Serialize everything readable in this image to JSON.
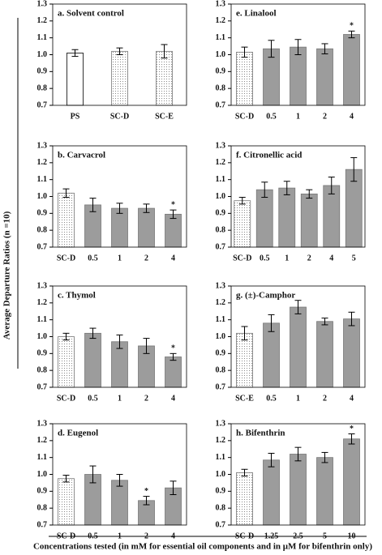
{
  "ylabel": "Average Departure Ratios (n =10)",
  "xlabel": "Concentrations tested (in mM for essential oil components and in μM for bifenthrin only)",
  "chart_data": [
    {
      "type": "bar",
      "title": "a. Solvent control",
      "categories": [
        "PS",
        "SC-D",
        "SC-E"
      ],
      "values": [
        1.01,
        1.02,
        1.02
      ],
      "errors": [
        0.02,
        0.02,
        0.04
      ],
      "fills": [
        "white",
        "dots",
        "dots"
      ],
      "significance": [
        null,
        null,
        null
      ],
      "ylim": [
        0.7,
        1.3
      ],
      "yticks": [
        0.7,
        0.8,
        0.9,
        {
          "value": 1,
          "label": "1.0"
        },
        1.1,
        1.2,
        1.3
      ]
    },
    {
      "type": "bar",
      "title": "b. Carvacrol",
      "categories": [
        "SC-D",
        "0.5",
        "1",
        "2",
        "4"
      ],
      "values": [
        1.02,
        0.95,
        0.93,
        0.93,
        0.895
      ],
      "errors": [
        0.025,
        0.04,
        0.03,
        0.025,
        0.025
      ],
      "fills": [
        "dots",
        "#9c9c9c",
        "#9c9c9c",
        "#9c9c9c",
        "#9c9c9c"
      ],
      "significance": [
        null,
        null,
        null,
        null,
        "*"
      ],
      "ylim": [
        0.7,
        1.3
      ],
      "yticks": [
        0.7,
        0.8,
        0.9,
        {
          "value": 1,
          "label": "1.0"
        },
        1.1,
        1.2,
        1.3
      ]
    },
    {
      "type": "bar",
      "title": "c. Thymol",
      "categories": [
        "SC-D",
        "0.5",
        "1",
        "2",
        "4"
      ],
      "values": [
        1.0,
        1.02,
        0.97,
        0.945,
        0.88
      ],
      "errors": [
        0.02,
        0.03,
        0.04,
        0.045,
        0.02
      ],
      "fills": [
        "dots",
        "#9c9c9c",
        "#9c9c9c",
        "#9c9c9c",
        "#9c9c9c"
      ],
      "significance": [
        null,
        null,
        null,
        null,
        "*"
      ],
      "ylim": [
        0.7,
        1.3
      ],
      "yticks": [
        0.7,
        0.8,
        0.9,
        {
          "value": 1,
          "label": "1.0"
        },
        1.1,
        1.2,
        1.3
      ]
    },
    {
      "type": "bar",
      "title": "d. Eugenol",
      "categories": [
        "SC-D",
        "0.5",
        "1",
        "2",
        "4"
      ],
      "values": [
        0.975,
        1.0,
        0.965,
        0.845,
        0.92
      ],
      "errors": [
        0.02,
        0.05,
        0.035,
        0.025,
        0.04
      ],
      "fills": [
        "dots",
        "#9c9c9c",
        "#9c9c9c",
        "#9c9c9c",
        "#9c9c9c"
      ],
      "significance": [
        null,
        null,
        null,
        "*",
        null
      ],
      "ylim": [
        0.7,
        1.3
      ],
      "yticks": [
        0.7,
        0.8,
        0.9,
        {
          "value": 1,
          "label": "1.0"
        },
        1.1,
        1.2,
        1.3
      ]
    },
    {
      "type": "bar",
      "title": "e. Linalool",
      "categories": [
        "SC-D",
        "0.5",
        "1",
        "2",
        "4"
      ],
      "values": [
        1.015,
        1.035,
        1.045,
        1.035,
        1.12
      ],
      "errors": [
        0.03,
        0.05,
        0.045,
        0.03,
        0.02
      ],
      "fills": [
        "dots",
        "#9c9c9c",
        "#9c9c9c",
        "#9c9c9c",
        "#9c9c9c"
      ],
      "significance": [
        null,
        null,
        null,
        null,
        "*"
      ],
      "ylim": [
        0.7,
        1.3
      ],
      "yticks": [
        0.7,
        0.8,
        0.9,
        {
          "value": 1,
          "label": "1.0"
        },
        1.1,
        1.2,
        1.3
      ]
    },
    {
      "type": "bar",
      "title": "f. Citronellic acid",
      "categories": [
        "SC-D",
        "0.5",
        "1",
        "2",
        "4",
        "5"
      ],
      "values": [
        0.975,
        1.04,
        1.05,
        1.015,
        1.065,
        1.16
      ],
      "errors": [
        0.02,
        0.045,
        0.04,
        0.025,
        0.05,
        0.07
      ],
      "fills": [
        "dots",
        "#9c9c9c",
        "#9c9c9c",
        "#9c9c9c",
        "#9c9c9c",
        "#9c9c9c"
      ],
      "significance": [
        null,
        null,
        null,
        null,
        null,
        null
      ],
      "ylim": [
        0.7,
        1.3
      ],
      "yticks": [
        0.7,
        0.8,
        0.9,
        {
          "value": 1,
          "label": "1.0"
        },
        1.1,
        1.2,
        1.3
      ]
    },
    {
      "type": "bar",
      "title": "g. (±)-Camphor",
      "categories": [
        "SC-E",
        "0.5",
        "1",
        "2",
        "4"
      ],
      "values": [
        1.02,
        1.08,
        1.175,
        1.09,
        1.105
      ],
      "errors": [
        0.04,
        0.05,
        0.04,
        0.02,
        0.04
      ],
      "fills": [
        "dots",
        "#9c9c9c",
        "#9c9c9c",
        "#9c9c9c",
        "#9c9c9c"
      ],
      "significance": [
        null,
        null,
        null,
        null,
        null
      ],
      "ylim": [
        0.7,
        1.3
      ],
      "yticks": [
        0.7,
        0.8,
        0.9,
        {
          "value": 1,
          "label": "1.0"
        },
        1.1,
        1.2,
        1.3
      ]
    },
    {
      "type": "bar",
      "title": "h. Bifenthrin",
      "categories": [
        "SC-D",
        "1.25",
        "2.5",
        "5",
        "10"
      ],
      "values": [
        1.01,
        1.085,
        1.12,
        1.1,
        1.21
      ],
      "errors": [
        0.02,
        0.04,
        0.04,
        0.03,
        0.03
      ],
      "fills": [
        "dots",
        "#9c9c9c",
        "#9c9c9c",
        "#9c9c9c",
        "#9c9c9c"
      ],
      "significance": [
        null,
        null,
        null,
        null,
        "*"
      ],
      "ylim": [
        0.7,
        1.3
      ],
      "yticks": [
        0.7,
        0.8,
        0.9,
        {
          "value": 1,
          "label": "1.0"
        },
        1.1,
        1.2,
        1.3
      ]
    }
  ]
}
